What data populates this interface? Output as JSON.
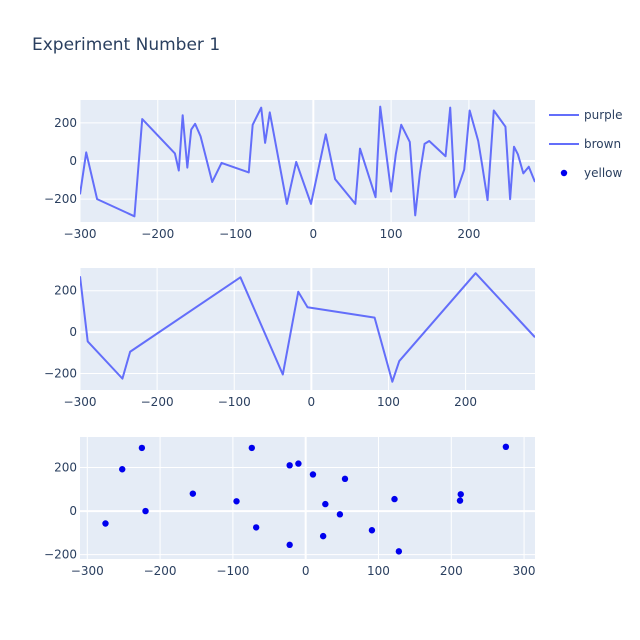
{
  "chart_data": [
    {
      "type": "line",
      "title": "Experiment Number 1",
      "xlabel": "",
      "ylabel": "",
      "series": [
        {
          "name": "purple",
          "color": "#636efa",
          "x": [
            -300,
            -292,
            -278,
            -230,
            -220,
            -178,
            -173,
            -168,
            -162,
            -157,
            -152,
            -145,
            -130,
            -118,
            -83,
            -78,
            -67,
            -62,
            -56,
            -34,
            -22,
            -3,
            16,
            28,
            54,
            60,
            80,
            86,
            100,
            106,
            113,
            124,
            131,
            137,
            143,
            149,
            170,
            176,
            182,
            194,
            201,
            212,
            217,
            224,
            232,
            247,
            253,
            258,
            263,
            270,
            277,
            285
          ],
          "y": [
            -175,
            45,
            -200,
            -290,
            220,
            40,
            -50,
            240,
            -35,
            165,
            195,
            130,
            -110,
            -10,
            -60,
            190,
            280,
            95,
            255,
            -225,
            -5,
            -225,
            140,
            -95,
            -225,
            65,
            -190,
            285,
            -160,
            35,
            190,
            100,
            -285,
            -65,
            90,
            105,
            25,
            280,
            -190,
            -45,
            265,
            105,
            -20,
            -205,
            265,
            180,
            -200,
            75,
            35,
            -65,
            -30,
            -110
          ]
        }
      ],
      "xlim": [
        -300,
        285
      ],
      "ylim": [
        -320,
        320
      ],
      "xticks": [
        -300,
        -200,
        -100,
        0,
        100,
        200
      ],
      "yticks": [
        -200,
        0,
        200
      ],
      "grid": true
    },
    {
      "type": "line",
      "title": "",
      "xlabel": "",
      "ylabel": "",
      "series": [
        {
          "name": "brown",
          "color": "#636efa",
          "x": [
            -300,
            -290,
            -245,
            -235,
            -92,
            -37,
            -17,
            -5,
            82,
            105,
            114,
            213,
            290
          ],
          "y": [
            270,
            -45,
            -225,
            -95,
            265,
            -205,
            195,
            120,
            70,
            -240,
            -140,
            285,
            -25
          ]
        }
      ],
      "xlim": [
        -300,
        290
      ],
      "ylim": [
        -280,
        310
      ],
      "xticks": [
        -300,
        -200,
        -100,
        0,
        100,
        200
      ],
      "yticks": [
        -200,
        0,
        200
      ],
      "grid": true
    },
    {
      "type": "scatter",
      "title": "",
      "xlabel": "",
      "ylabel": "",
      "series": [
        {
          "name": "yellow",
          "color": "#0000ee",
          "x": [
            -275,
            -252,
            -225,
            -220,
            -155,
            -95,
            -74,
            -68,
            -22,
            -22,
            -10,
            10,
            24,
            27,
            47,
            54,
            91,
            122,
            128,
            212,
            213,
            275
          ],
          "y": [
            -57,
            192,
            290,
            0,
            80,
            45,
            290,
            -75,
            210,
            -155,
            218,
            168,
            -115,
            32,
            -15,
            148,
            -88,
            55,
            -185,
            48,
            77,
            295
          ]
        }
      ],
      "xlim": [
        -310,
        315
      ],
      "ylim": [
        -220,
        340
      ],
      "xticks": [
        -300,
        -200,
        -100,
        0,
        100,
        200,
        300
      ],
      "yticks": [
        -200,
        0,
        200
      ],
      "grid": true
    }
  ],
  "legend": {
    "placement": "right",
    "items": [
      {
        "label": "purple",
        "kind": "line",
        "color": "#636efa"
      },
      {
        "label": "brown",
        "kind": "line",
        "color": "#636efa"
      },
      {
        "label": "yellow",
        "kind": "marker",
        "color": "#0000ee"
      }
    ]
  },
  "colors": {
    "plot_background": "#e5ecf6",
    "grid": "#ffffff",
    "text": "#2a3f5f"
  }
}
